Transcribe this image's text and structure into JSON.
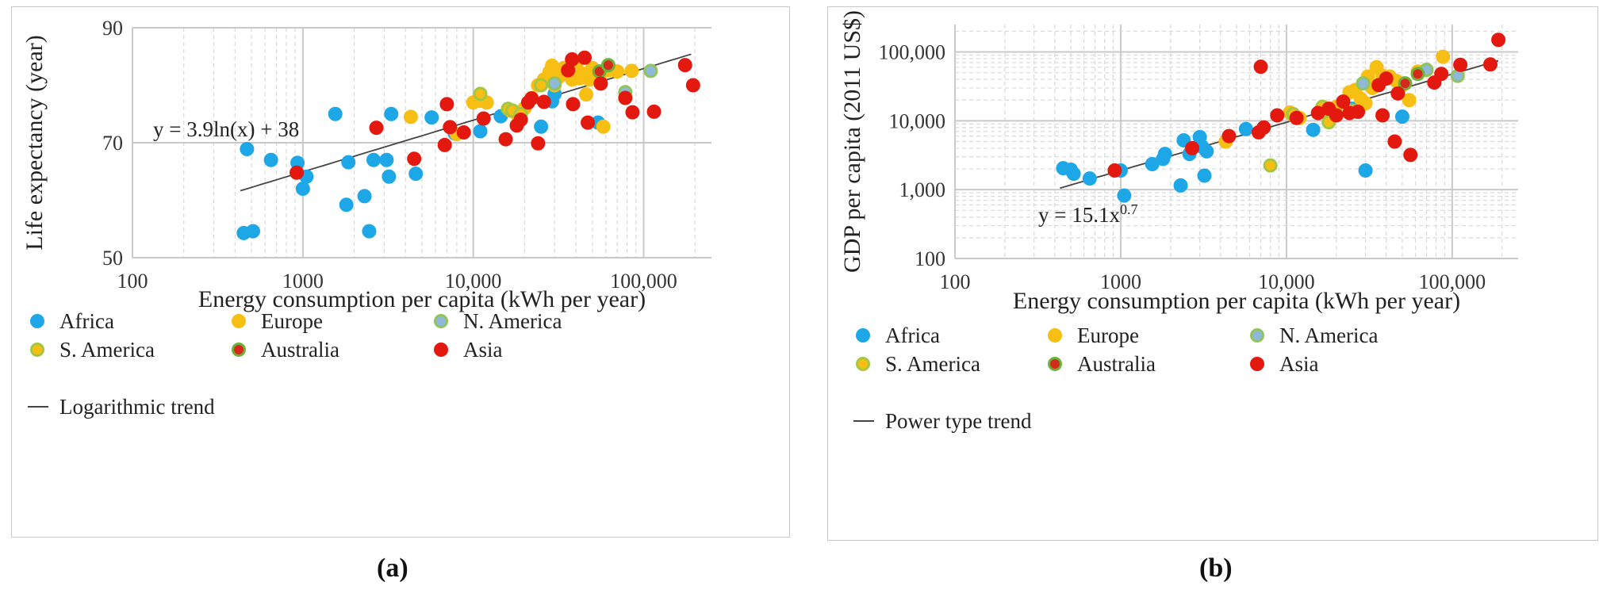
{
  "captions": {
    "a": "(a)",
    "b": "(b)"
  },
  "groups": [
    {
      "name": "Africa",
      "fill": "#1ea7e6",
      "stroke": "#1ea7e6"
    },
    {
      "name": "Europe",
      "fill": "#f7be13",
      "stroke": "#f7be13"
    },
    {
      "name": "N. America",
      "fill": "#8fb8d9",
      "stroke": "#8fc55a"
    },
    {
      "name": "S. America",
      "fill": "#f7be13",
      "stroke": "#a3c741"
    },
    {
      "name": "Australia",
      "fill": "#d42a1c",
      "stroke": "#6bb33a"
    },
    {
      "name": "Asia",
      "fill": "#e3190f",
      "stroke": "#e3190f"
    }
  ],
  "chart_data": [
    {
      "type": "scatter",
      "xscale": "log",
      "xlabel": "Energy consumption per capita (kWh per year)",
      "ylabel": "Life expectancy (year)",
      "xlim": [
        100,
        250000
      ],
      "ylim": [
        50,
        90
      ],
      "xticks": [
        100,
        1000,
        10000,
        100000
      ],
      "xtick_labels": [
        "100",
        "1000",
        "10,000",
        "100,000"
      ],
      "yticks": [
        50,
        70,
        90
      ],
      "ytick_labels": [
        "50",
        "70",
        "90"
      ],
      "grid": "log-minor",
      "trend": {
        "label": "Logarithmic trend",
        "equation": "y = 3.9ln(x) + 38",
        "kind": "log",
        "a": 3.9,
        "b": 38,
        "x_range": [
          430,
          190000
        ]
      },
      "legend_position": "bottom",
      "series": [
        {
          "name": "Africa",
          "points": [
            [
              450,
              54.3
            ],
            [
              510,
              54.6
            ],
            [
              470,
              68.9
            ],
            [
              650,
              67.0
            ],
            [
              930,
              66.5
            ],
            [
              1000,
              62.0
            ],
            [
              1050,
              64.1
            ],
            [
              1800,
              59.2
            ],
            [
              1850,
              66.6
            ],
            [
              1550,
              75.0
            ],
            [
              2300,
              60.7
            ],
            [
              2450,
              54.6
            ],
            [
              2600,
              67.0
            ],
            [
              3100,
              67.0
            ],
            [
              3200,
              64.1
            ],
            [
              3300,
              75.0
            ],
            [
              4600,
              64.6
            ],
            [
              5700,
              74.4
            ],
            [
              7800,
              71.6
            ],
            [
              11000,
              72.0
            ],
            [
              14500,
              74.6
            ],
            [
              25000,
              72.8
            ],
            [
              29000,
              77.2
            ],
            [
              30000,
              78.5
            ],
            [
              54000,
              73.5
            ]
          ]
        },
        {
          "name": "Europe",
          "points": [
            [
              4300,
              74.5
            ],
            [
              8000,
              71.5
            ],
            [
              10000,
              77.0
            ],
            [
              11000,
              77.3
            ],
            [
              12000,
              77.0
            ],
            [
              16500,
              75.6
            ],
            [
              18000,
              75.0
            ],
            [
              20000,
              76.0
            ],
            [
              22000,
              77.8
            ],
            [
              24000,
              80.0
            ],
            [
              26000,
              81.0
            ],
            [
              28000,
              82.3
            ],
            [
              29000,
              83.4
            ],
            [
              30000,
              80.0
            ],
            [
              32000,
              81.5
            ],
            [
              34000,
              83.0
            ],
            [
              36000,
              82.3
            ],
            [
              38000,
              81.0
            ],
            [
              40000,
              83.5
            ],
            [
              42000,
              81.2
            ],
            [
              44000,
              82.0
            ],
            [
              46000,
              78.4
            ],
            [
              48000,
              81.0
            ],
            [
              50000,
              83.0
            ],
            [
              55000,
              81.0
            ],
            [
              58000,
              72.8
            ],
            [
              62000,
              82.6
            ],
            [
              70000,
              82.4
            ],
            [
              85000,
              82.5
            ]
          ]
        },
        {
          "name": "N. America",
          "points": [
            [
              30000,
              80.3
            ],
            [
              78000,
              78.8
            ],
            [
              110000,
              82.5
            ]
          ]
        },
        {
          "name": "S. America",
          "points": [
            [
              11000,
              78.5
            ],
            [
              16000,
              75.9
            ],
            [
              17000,
              75.6
            ],
            [
              19000,
              75.0
            ],
            [
              25000,
              80.0
            ]
          ]
        },
        {
          "name": "Australia",
          "points": [
            [
              55000,
              82.4
            ],
            [
              62000,
              83.5
            ]
          ]
        },
        {
          "name": "Asia",
          "points": [
            [
              920,
              64.8
            ],
            [
              2700,
              72.6
            ],
            [
              4500,
              67.2
            ],
            [
              6800,
              69.6
            ],
            [
              7000,
              76.7
            ],
            [
              7300,
              72.7
            ],
            [
              8800,
              71.8
            ],
            [
              11500,
              74.2
            ],
            [
              15500,
              70.6
            ],
            [
              18000,
              73.0
            ],
            [
              19000,
              74.0
            ],
            [
              21000,
              77.0
            ],
            [
              22000,
              77.7
            ],
            [
              24000,
              69.9
            ],
            [
              26000,
              77.1
            ],
            [
              36000,
              82.6
            ],
            [
              38000,
              84.5
            ],
            [
              38500,
              76.7
            ],
            [
              45000,
              84.8
            ],
            [
              47000,
              73.5
            ],
            [
              56000,
              80.3
            ],
            [
              78000,
              77.8
            ],
            [
              86000,
              75.3
            ],
            [
              115000,
              75.4
            ],
            [
              175000,
              83.5
            ],
            [
              195000,
              80.0
            ]
          ]
        }
      ]
    },
    {
      "type": "scatter",
      "xscale": "log",
      "yscale": "log",
      "xlabel": "Energy consumption per capita (kWh per year)",
      "ylabel": "GDP per capita (2011 US$)",
      "xlim": [
        100,
        250000
      ],
      "ylim": [
        100,
        250000
      ],
      "xticks": [
        100,
        1000,
        10000,
        100000
      ],
      "xtick_labels": [
        "100",
        "1000",
        "10,000",
        "100,000"
      ],
      "yticks": [
        100,
        1000,
        10000,
        100000
      ],
      "ytick_labels": [
        "100",
        "1,000",
        "10,000",
        "100,000"
      ],
      "grid": "log-minor",
      "trend": {
        "label": "Power type trend",
        "equation_base": "y = 15.1x",
        "equation_exp": "0.7",
        "kind": "power",
        "a": 15.1,
        "b": 0.7,
        "x_range": [
          430,
          190000
        ]
      },
      "legend_position": "bottom",
      "series": [
        {
          "name": "Africa",
          "points": [
            [
              450,
              2050
            ],
            [
              500,
              1950
            ],
            [
              520,
              1700
            ],
            [
              650,
              1450
            ],
            [
              1000,
              1900
            ],
            [
              1050,
              820
            ],
            [
              1550,
              2350
            ],
            [
              1800,
              2800
            ],
            [
              1850,
              3300
            ],
            [
              2300,
              1150
            ],
            [
              2400,
              5200
            ],
            [
              2600,
              3300
            ],
            [
              3000,
              5800
            ],
            [
              3100,
              4200
            ],
            [
              3200,
              1600
            ],
            [
              3300,
              3600
            ],
            [
              5700,
              7600
            ],
            [
              14500,
              7400
            ],
            [
              25000,
              15000
            ],
            [
              30000,
              1900
            ],
            [
              50000,
              11500
            ]
          ]
        },
        {
          "name": "Europe",
          "points": [
            [
              4300,
              5000
            ],
            [
              10500,
              13200
            ],
            [
              11000,
              12000
            ],
            [
              12000,
              11000
            ],
            [
              16000,
              14000
            ],
            [
              18000,
              11500
            ],
            [
              20000,
              16000
            ],
            [
              24000,
              26000
            ],
            [
              26000,
              28000
            ],
            [
              28000,
              21000
            ],
            [
              30000,
              18000
            ],
            [
              31000,
              44000
            ],
            [
              33000,
              30000
            ],
            [
              35000,
              60000
            ],
            [
              38000,
              45000
            ],
            [
              42000,
              44000
            ],
            [
              46000,
              38000
            ],
            [
              50000,
              33000
            ],
            [
              55000,
              20000
            ],
            [
              62000,
              52000
            ],
            [
              70000,
              55000
            ],
            [
              88000,
              85000
            ]
          ]
        },
        {
          "name": "N. America",
          "points": [
            [
              29000,
              35000
            ],
            [
              70000,
              55000
            ],
            [
              108000,
              45000
            ]
          ]
        },
        {
          "name": "S. America",
          "points": [
            [
              8000,
              2250
            ],
            [
              11000,
              12500
            ],
            [
              16500,
              16000
            ],
            [
              18000,
              9500
            ],
            [
              25000,
              14000
            ]
          ]
        },
        {
          "name": "Australia",
          "points": [
            [
              52000,
              35000
            ],
            [
              62000,
              48000
            ]
          ]
        },
        {
          "name": "Asia",
          "points": [
            [
              920,
              1900
            ],
            [
              2700,
              4000
            ],
            [
              4500,
              6000
            ],
            [
              6800,
              6800
            ],
            [
              7000,
              61000
            ],
            [
              7300,
              8000
            ],
            [
              8800,
              12000
            ],
            [
              11500,
              11000
            ],
            [
              15500,
              13000
            ],
            [
              18000,
              15000
            ],
            [
              20000,
              12000
            ],
            [
              22000,
              19000
            ],
            [
              24000,
              13000
            ],
            [
              27000,
              13500
            ],
            [
              36000,
              33000
            ],
            [
              38000,
              12000
            ],
            [
              40000,
              41000
            ],
            [
              45000,
              5000
            ],
            [
              47000,
              25000
            ],
            [
              56000,
              3200
            ],
            [
              78000,
              36000
            ],
            [
              86000,
              48000
            ],
            [
              112000,
              65000
            ],
            [
              170000,
              66000
            ],
            [
              190000,
              150000
            ]
          ]
        }
      ]
    }
  ]
}
